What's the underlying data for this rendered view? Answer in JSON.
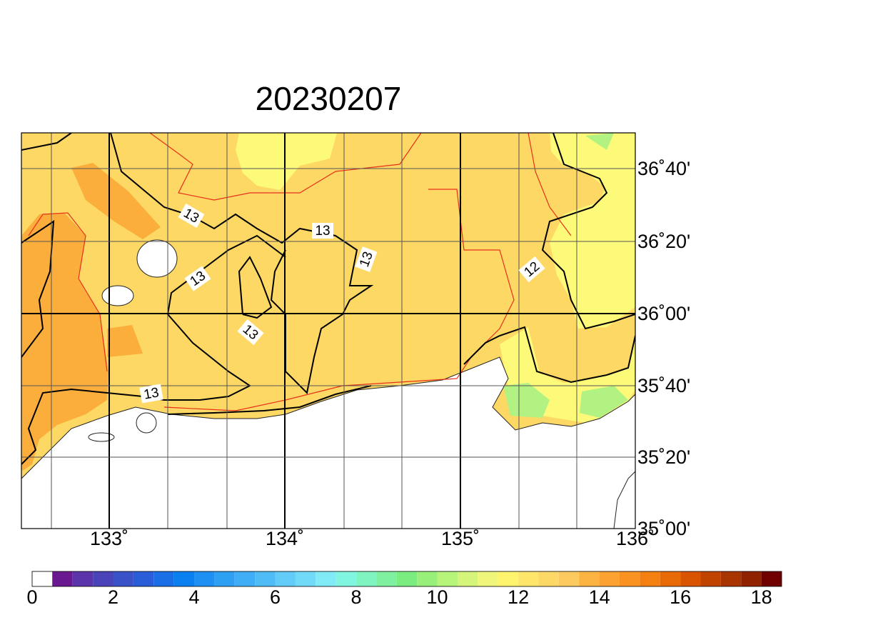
{
  "title": "20230207",
  "lon_labels": [
    "133˚",
    "134˚",
    "135˚",
    "136˚"
  ],
  "lat_labels": [
    "36˚40'",
    "36˚20'",
    "36˚00'",
    "35˚40'",
    "35˚20'",
    "35˚00'"
  ],
  "contour_labels": [
    "13",
    "13",
    "13",
    "13",
    "13",
    "13",
    "12"
  ],
  "colorbar": {
    "lim": [
      0,
      18.5
    ],
    "ticks": [
      0,
      2,
      4,
      6,
      8,
      10,
      12,
      14,
      16,
      18
    ],
    "colors": [
      "#ffffff",
      "#6a1890",
      "#5a34a8",
      "#4a44b8",
      "#3a52c8",
      "#2a5ed8",
      "#1a6ee6",
      "#0a80f0",
      "#1e90f4",
      "#2ea0f4",
      "#40aef6",
      "#50bcf6",
      "#62cbf8",
      "#70daf8",
      "#80eaf6",
      "#80f6e0",
      "#80f4c0",
      "#7ef0a0",
      "#7aec80",
      "#98f07a",
      "#b6f47a",
      "#d4f47a",
      "#f0f67a",
      "#fff46e",
      "#fde66a",
      "#fdd866",
      "#fcca5e",
      "#fbb442",
      "#fba232",
      "#fa9222",
      "#f48012",
      "#e86a06",
      "#d85400",
      "#c04400",
      "#a83400",
      "#902200",
      "#700000"
    ]
  }
}
